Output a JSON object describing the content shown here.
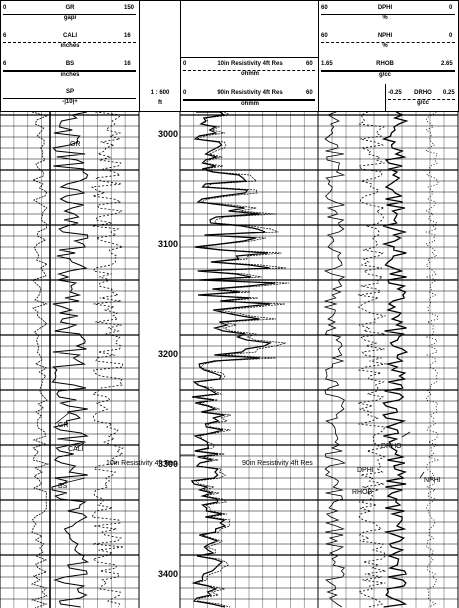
{
  "header": {
    "track1": {
      "curves": [
        {
          "name": "GR",
          "left": "0",
          "right": "150",
          "unit": "gapi"
        },
        {
          "name": "CALI",
          "left": "6",
          "right": "16",
          "unit": "inches"
        },
        {
          "name": "BS",
          "left": "6",
          "right": "16",
          "unit": "inches"
        },
        {
          "name": "SP",
          "left": "",
          "right": "",
          "unit": "-|10|+"
        }
      ]
    },
    "depth": {
      "scale": "1 : 600",
      "unit": "ft"
    },
    "track2": {
      "curves": [
        {
          "name": "10in Resistivity 4ft Res",
          "left": "0",
          "right": "60",
          "unit": "ohmm"
        },
        {
          "name": "90in Resistivity 4ft Res",
          "left": "0",
          "right": "60",
          "unit": "ohmm"
        }
      ]
    },
    "track3": {
      "curves": [
        {
          "name": "DPHI",
          "left": "60",
          "right": "0",
          "unit": "%"
        },
        {
          "name": "NPHI",
          "left": "60",
          "right": "0",
          "unit": "%"
        },
        {
          "name": "RHOB",
          "left": "1.65",
          "right": "2.65",
          "unit": "g/cc"
        }
      ],
      "drho": {
        "name": "DRHO",
        "left": "-0.25",
        "right": "0.25",
        "unit": "g/cc"
      }
    }
  },
  "depth_labels": [
    "3000",
    "3100",
    "3200",
    "3300",
    "3400"
  ],
  "annotations": {
    "gr_top": "GR",
    "gr": "GR",
    "cali": "CALI",
    "bs": "BS",
    "res10": "10in Resistivity 4ft Res",
    "res90": "90in Resistivity 4ft Res",
    "drho": "DRHO",
    "dphi": "DPHI",
    "nphi": "NPHI",
    "rhob": "RHOB"
  },
  "colors": {
    "ink": "#000000",
    "paper": "#ffffff"
  }
}
